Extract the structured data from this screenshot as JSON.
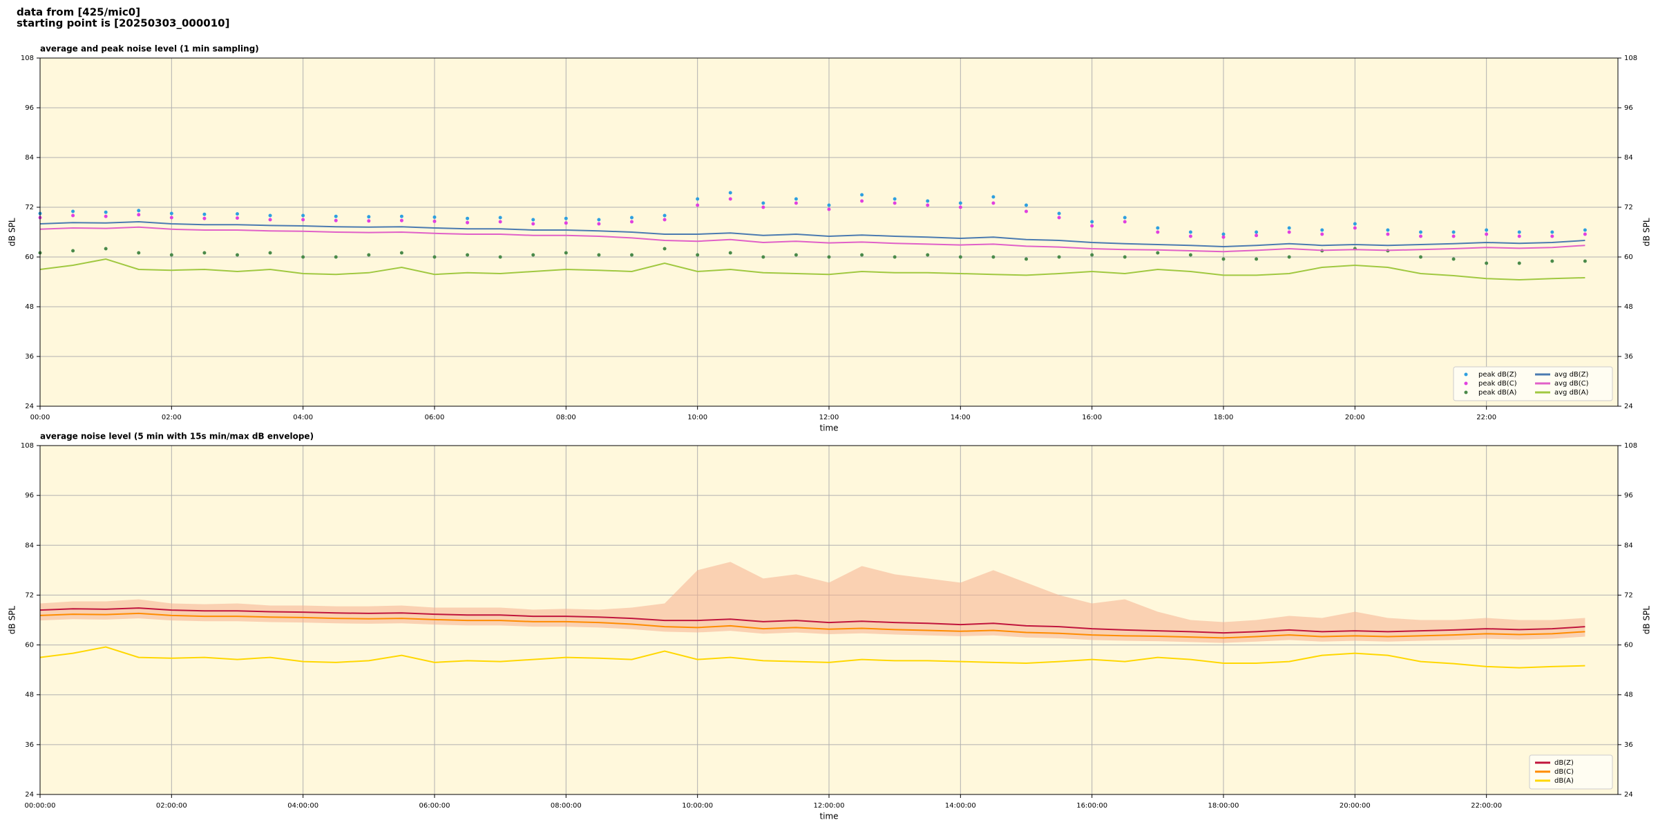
{
  "header": {
    "lines": [
      "data from [425/mic0]",
      "starting point is [20250303_000010]"
    ]
  },
  "chart_data": [
    {
      "type": "line",
      "title": "average and peak noise level (1 min sampling)",
      "xlabel": "time",
      "ylabel": "dB SPL",
      "xlim": [
        0,
        24
      ],
      "ylim": [
        24,
        108
      ],
      "yticks": [
        24,
        36,
        48,
        60,
        72,
        84,
        96,
        108
      ],
      "xticks": [
        {
          "value": 0,
          "label": "00:00"
        },
        {
          "value": 2,
          "label": "02:00"
        },
        {
          "value": 4,
          "label": "04:00"
        },
        {
          "value": 6,
          "label": "06:00"
        },
        {
          "value": 8,
          "label": "08:00"
        },
        {
          "value": 10,
          "label": "10:00"
        },
        {
          "value": 12,
          "label": "12:00"
        },
        {
          "value": 14,
          "label": "14:00"
        },
        {
          "value": 16,
          "label": "16:00"
        },
        {
          "value": 18,
          "label": "18:00"
        },
        {
          "value": 20,
          "label": "20:00"
        },
        {
          "value": 22,
          "label": "22:00"
        }
      ],
      "grid": true,
      "legend": "lower right",
      "legend_columns": 2,
      "background": "#fff8dc",
      "x": [
        0,
        0.5,
        1,
        1.5,
        2,
        2.5,
        3,
        3.5,
        4,
        4.5,
        5,
        5.5,
        6,
        6.5,
        7,
        7.5,
        8,
        8.5,
        9,
        9.5,
        10,
        10.5,
        11,
        11.5,
        12,
        12.5,
        13,
        13.5,
        14,
        14.5,
        15,
        15.5,
        16,
        16.5,
        17,
        17.5,
        18,
        18.5,
        19,
        19.5,
        20,
        20.5,
        21,
        21.5,
        22,
        22.5,
        23,
        23.5
      ],
      "series": [
        {
          "name": "peak dB(Z)",
          "color": "#2e9fe0",
          "marker": "dot",
          "values": [
            70.5,
            71,
            70.8,
            71.2,
            70.5,
            70.3,
            70.4,
            70,
            70,
            69.8,
            69.7,
            69.8,
            69.6,
            69.3,
            69.5,
            69,
            69.3,
            69,
            69.5,
            70,
            74,
            75.5,
            73,
            74,
            72.5,
            75,
            74,
            73.5,
            73,
            74.5,
            72.5,
            70.5,
            68.5,
            69.5,
            67,
            66,
            65.5,
            66,
            67,
            66.5,
            68,
            66.5,
            66,
            66,
            66.5,
            66,
            66,
            66.5
          ]
        },
        {
          "name": "peak dB(C)",
          "color": "#e040e0",
          "marker": "dot",
          "values": [
            69.5,
            70,
            69.8,
            70.2,
            69.5,
            69.3,
            69.4,
            69,
            69,
            68.8,
            68.7,
            68.8,
            68.6,
            68.3,
            68.5,
            68,
            68.2,
            68,
            68.5,
            69,
            72.5,
            74,
            72,
            73,
            71.5,
            73.5,
            73,
            72.5,
            72,
            73,
            71,
            69.5,
            67.5,
            68.5,
            66,
            65,
            64.8,
            65.2,
            66,
            65.5,
            67,
            65.5,
            65,
            65,
            65.5,
            65,
            65,
            65.5
          ]
        },
        {
          "name": "peak dB(A)",
          "color": "#4a8a4a",
          "marker": "dot",
          "values": [
            61,
            61.5,
            62,
            61,
            60.5,
            61,
            60.5,
            61,
            60,
            60,
            60.5,
            61,
            60,
            60.5,
            60,
            60.5,
            61,
            60.5,
            60.5,
            62,
            60.5,
            61,
            60,
            60.5,
            60,
            60.5,
            60,
            60.5,
            60,
            60,
            59.5,
            60,
            60.5,
            60,
            61,
            60.5,
            59.5,
            59.5,
            60,
            61.5,
            62,
            61.5,
            60,
            59.5,
            58.5,
            58.5,
            59,
            59
          ]
        },
        {
          "name": "avg dB(Z)",
          "color": "#4a7ab0",
          "marker": "line",
          "values": [
            68,
            68.3,
            68.2,
            68.5,
            68,
            67.8,
            67.8,
            67.6,
            67.5,
            67.3,
            67.2,
            67.3,
            67,
            66.8,
            66.8,
            66.5,
            66.5,
            66.3,
            66,
            65.5,
            65.5,
            65.8,
            65.2,
            65.5,
            65,
            65.3,
            65,
            64.8,
            64.5,
            64.8,
            64.2,
            64,
            63.5,
            63.2,
            63,
            62.8,
            62.5,
            62.8,
            63.2,
            62.8,
            63,
            62.8,
            63,
            63.2,
            63.5,
            63.3,
            63.5,
            64
          ]
        },
        {
          "name": "avg dB(C)",
          "color": "#e060c8",
          "marker": "line",
          "values": [
            66.7,
            67,
            66.9,
            67.2,
            66.7,
            66.5,
            66.5,
            66.3,
            66.2,
            66,
            65.9,
            66,
            65.7,
            65.5,
            65.5,
            65.2,
            65.2,
            65,
            64.6,
            64,
            63.8,
            64.2,
            63.5,
            63.8,
            63.4,
            63.6,
            63.3,
            63.1,
            62.9,
            63.1,
            62.6,
            62.4,
            62,
            61.8,
            61.7,
            61.5,
            61.3,
            61.6,
            62,
            61.6,
            61.8,
            61.6,
            61.8,
            62,
            62.3,
            62.1,
            62.3,
            62.8
          ]
        },
        {
          "name": "avg dB(A)",
          "color": "#a0c840",
          "marker": "line",
          "values": [
            57,
            58,
            59.5,
            57,
            56.8,
            57,
            56.5,
            57,
            56,
            55.8,
            56.2,
            57.5,
            55.8,
            56.2,
            56,
            56.5,
            57,
            56.8,
            56.5,
            58.5,
            56.5,
            57,
            56.2,
            56,
            55.8,
            56.5,
            56.2,
            56.2,
            56,
            55.8,
            55.6,
            56,
            56.5,
            56,
            57,
            56.5,
            55.6,
            55.6,
            56,
            57.5,
            58,
            57.5,
            56,
            55.5,
            54.8,
            54.5,
            54.8,
            55
          ]
        }
      ]
    },
    {
      "type": "line",
      "title": "average noise level (5 min with 15s min/max dB envelope)",
      "xlabel": "time",
      "ylabel": "dB SPL",
      "xlim": [
        0,
        24
      ],
      "ylim": [
        24,
        108
      ],
      "yticks": [
        24,
        36,
        48,
        60,
        72,
        84,
        96,
        108
      ],
      "xticks": [
        {
          "value": 0,
          "label": "00:00:00"
        },
        {
          "value": 2,
          "label": "02:00:00"
        },
        {
          "value": 4,
          "label": "04:00:00"
        },
        {
          "value": 6,
          "label": "06:00:00"
        },
        {
          "value": 8,
          "label": "08:00:00"
        },
        {
          "value": 10,
          "label": "10:00:00"
        },
        {
          "value": 12,
          "label": "12:00:00"
        },
        {
          "value": 14,
          "label": "14:00:00"
        },
        {
          "value": 16,
          "label": "16:00:00"
        },
        {
          "value": 18,
          "label": "18:00:00"
        },
        {
          "value": 20,
          "label": "20:00:00"
        },
        {
          "value": 22,
          "label": "22:00:00"
        }
      ],
      "grid": true,
      "legend": "lower right",
      "legend_columns": 1,
      "background": "#fff8dc",
      "x": [
        0,
        0.5,
        1,
        1.5,
        2,
        2.5,
        3,
        3.5,
        4,
        4.5,
        5,
        5.5,
        6,
        6.5,
        7,
        7.5,
        8,
        8.5,
        9,
        9.5,
        10,
        10.5,
        11,
        11.5,
        12,
        12.5,
        13,
        13.5,
        14,
        14.5,
        15,
        15.5,
        16,
        16.5,
        17,
        17.5,
        18,
        18.5,
        19,
        19.5,
        20,
        20.5,
        21,
        21.5,
        22,
        22.5,
        23,
        23.5
      ],
      "envelope": {
        "color": "#f5b090",
        "high": [
          70,
          70.5,
          70.5,
          71,
          70,
          69.8,
          70,
          69.5,
          69.5,
          69.3,
          69.3,
          69.5,
          69,
          69,
          69,
          68.5,
          68.7,
          68.5,
          69,
          70,
          78,
          80,
          76,
          77,
          75,
          79,
          77,
          76,
          75,
          78,
          75,
          72,
          70,
          71,
          68,
          66,
          65.5,
          66,
          67,
          66.5,
          68,
          66.5,
          66,
          66,
          66.5,
          66,
          66,
          66.5
        ],
        "low": [
          65.9,
          66.2,
          66.1,
          66.4,
          65.9,
          65.7,
          65.7,
          65.5,
          65.4,
          65.2,
          65.1,
          65.2,
          64.9,
          64.7,
          64.7,
          64.4,
          64.4,
          64.2,
          63.8,
          63.2,
          63,
          63.4,
          62.7,
          63,
          62.6,
          62.8,
          62.5,
          62.3,
          62.1,
          62.3,
          61.8,
          61.6,
          61.2,
          61,
          60.9,
          60.7,
          60.5,
          60.8,
          61.2,
          60.8,
          61,
          60.8,
          61,
          61.2,
          61.5,
          61.3,
          61.5,
          62
        ]
      },
      "series": [
        {
          "name": "dB(Z)",
          "color": "#c0143c",
          "marker": "line",
          "values": [
            68.4,
            68.7,
            68.6,
            68.9,
            68.4,
            68.2,
            68.2,
            68,
            67.9,
            67.7,
            67.6,
            67.7,
            67.4,
            67.2,
            67.2,
            66.9,
            66.9,
            66.7,
            66.4,
            65.9,
            65.9,
            66.2,
            65.6,
            65.9,
            65.4,
            65.7,
            65.4,
            65.2,
            64.9,
            65.2,
            64.6,
            64.4,
            63.9,
            63.6,
            63.4,
            63.2,
            62.9,
            63.2,
            63.6,
            63.2,
            63.4,
            63.2,
            63.4,
            63.6,
            63.9,
            63.7,
            63.9,
            64.4
          ]
        },
        {
          "name": "dB(C)",
          "color": "#ff8c00",
          "marker": "line",
          "values": [
            67.1,
            67.4,
            67.3,
            67.6,
            67.1,
            66.9,
            66.9,
            66.7,
            66.6,
            66.4,
            66.3,
            66.4,
            66.1,
            65.9,
            65.9,
            65.6,
            65.6,
            65.4,
            65,
            64.4,
            64.2,
            64.6,
            63.9,
            64.2,
            63.8,
            64,
            63.7,
            63.5,
            63.3,
            63.5,
            63,
            62.8,
            62.4,
            62.2,
            62.1,
            61.9,
            61.7,
            62,
            62.4,
            62,
            62.2,
            62,
            62.2,
            62.4,
            62.7,
            62.5,
            62.7,
            63.2
          ]
        },
        {
          "name": "dB(A)",
          "color": "#ffd700",
          "marker": "line",
          "values": [
            57,
            58,
            59.5,
            57,
            56.8,
            57,
            56.5,
            57,
            56,
            55.8,
            56.2,
            57.5,
            55.8,
            56.2,
            56,
            56.5,
            57,
            56.8,
            56.5,
            58.5,
            56.5,
            57,
            56.2,
            56,
            55.8,
            56.5,
            56.2,
            56.2,
            56,
            55.8,
            55.6,
            56,
            56.5,
            56,
            57,
            56.5,
            55.6,
            55.6,
            56,
            57.5,
            58,
            57.5,
            56,
            55.5,
            54.8,
            54.5,
            54.8,
            55
          ]
        }
      ]
    }
  ]
}
